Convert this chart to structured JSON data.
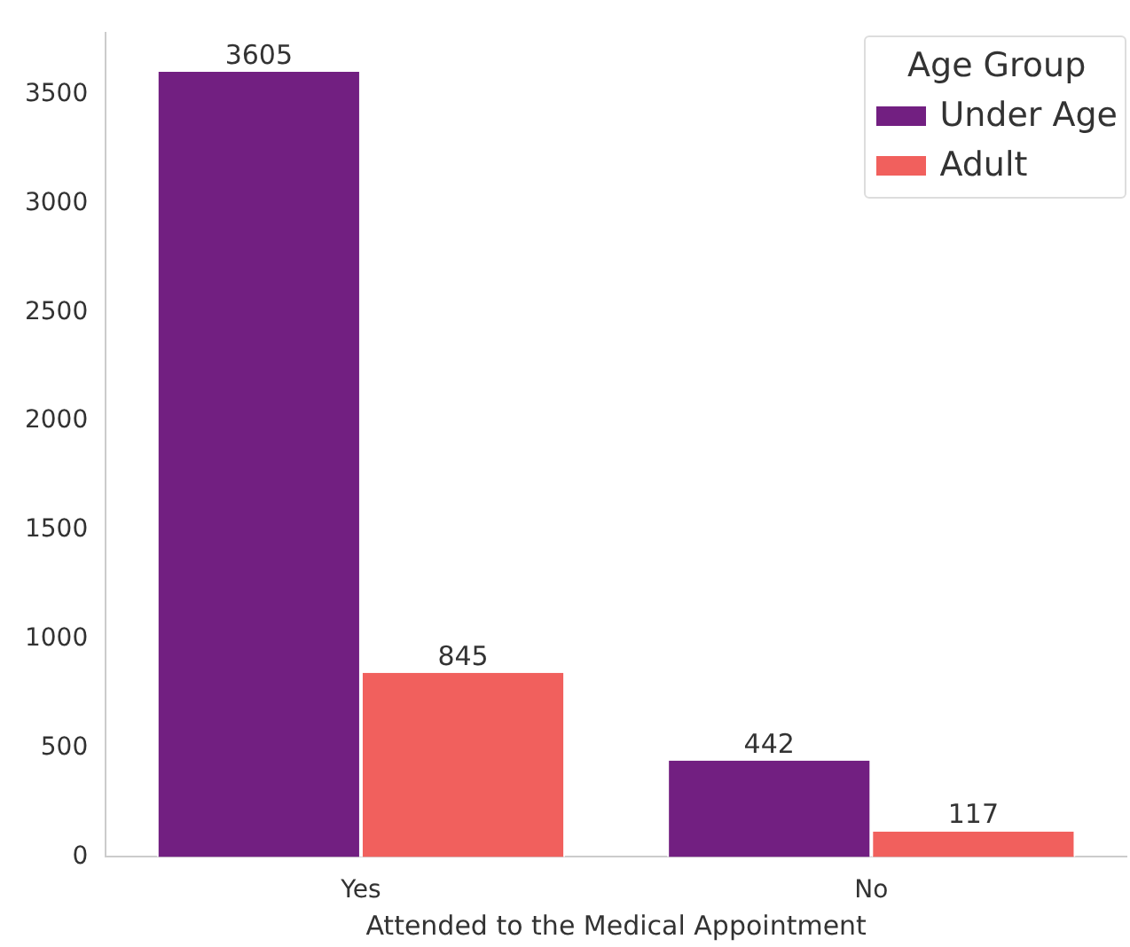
{
  "chart_data": {
    "type": "bar",
    "xlabel": "Attended to the Medical Appointment",
    "legend_title": "Age Group",
    "categories": [
      "Yes",
      "No"
    ],
    "series": [
      {
        "name": "Under Age",
        "color": "#721f81",
        "values": [
          3605,
          442
        ]
      },
      {
        "name": "Adult",
        "color": "#f1605d",
        "values": [
          845,
          117
        ]
      }
    ],
    "ylim": [
      0,
      3785
    ],
    "yticks": [
      0,
      500,
      1000,
      1500,
      2000,
      2500,
      3000,
      3500
    ],
    "data_labels": true,
    "grid": false,
    "legend": "top right"
  }
}
